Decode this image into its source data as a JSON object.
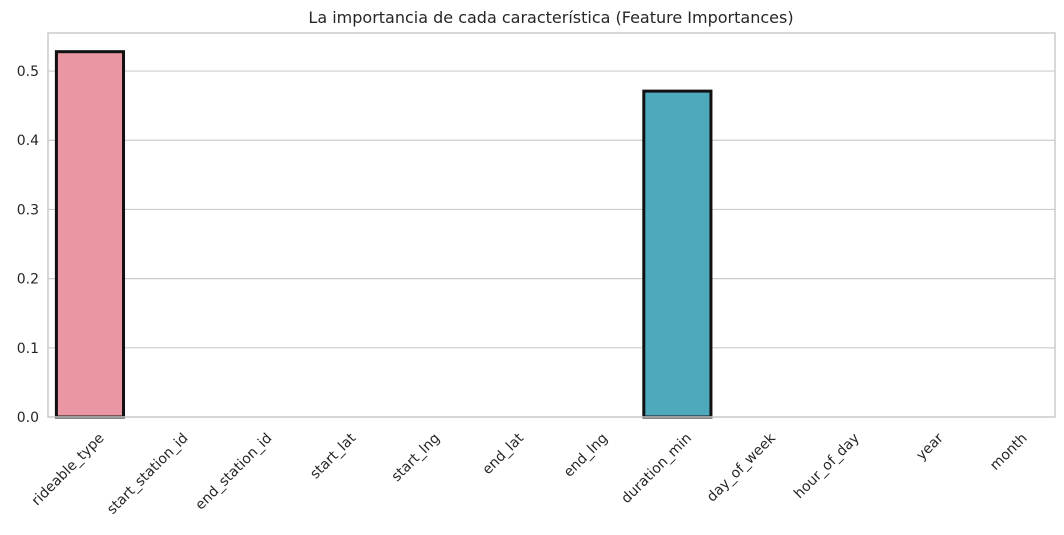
{
  "chart_data": {
    "type": "bar",
    "title": "La importancia de cada característica (Feature Importances)",
    "xlabel": "",
    "ylabel": "",
    "categories": [
      "rideable_type",
      "start_station_id",
      "end_station_id",
      "start_lat",
      "start_lng",
      "end_lat",
      "end_lng",
      "duration_min",
      "day_of_week",
      "hour_of_day",
      "year",
      "month"
    ],
    "values": [
      0.528,
      0.0,
      0.0,
      0.0,
      0.0,
      0.0,
      0.0,
      0.471,
      0.0,
      0.0,
      0.0,
      0.0
    ],
    "colors": [
      "#ea96a3",
      "#e69a80",
      "#c9a86a",
      "#b1b262",
      "#8fba5e",
      "#5fbe7a",
      "#57bba6",
      "#4ea9bd",
      "#5aa5d6",
      "#9c9ee8",
      "#d193e1",
      "#e98fc4"
    ],
    "ylim": [
      0,
      0.555
    ],
    "yticks": [
      "0.0",
      "0.1",
      "0.2",
      "0.3",
      "0.4",
      "0.5"
    ],
    "ytick_values": [
      0.0,
      0.1,
      0.2,
      0.3,
      0.4,
      0.5
    ],
    "grid": true,
    "legend": false
  }
}
